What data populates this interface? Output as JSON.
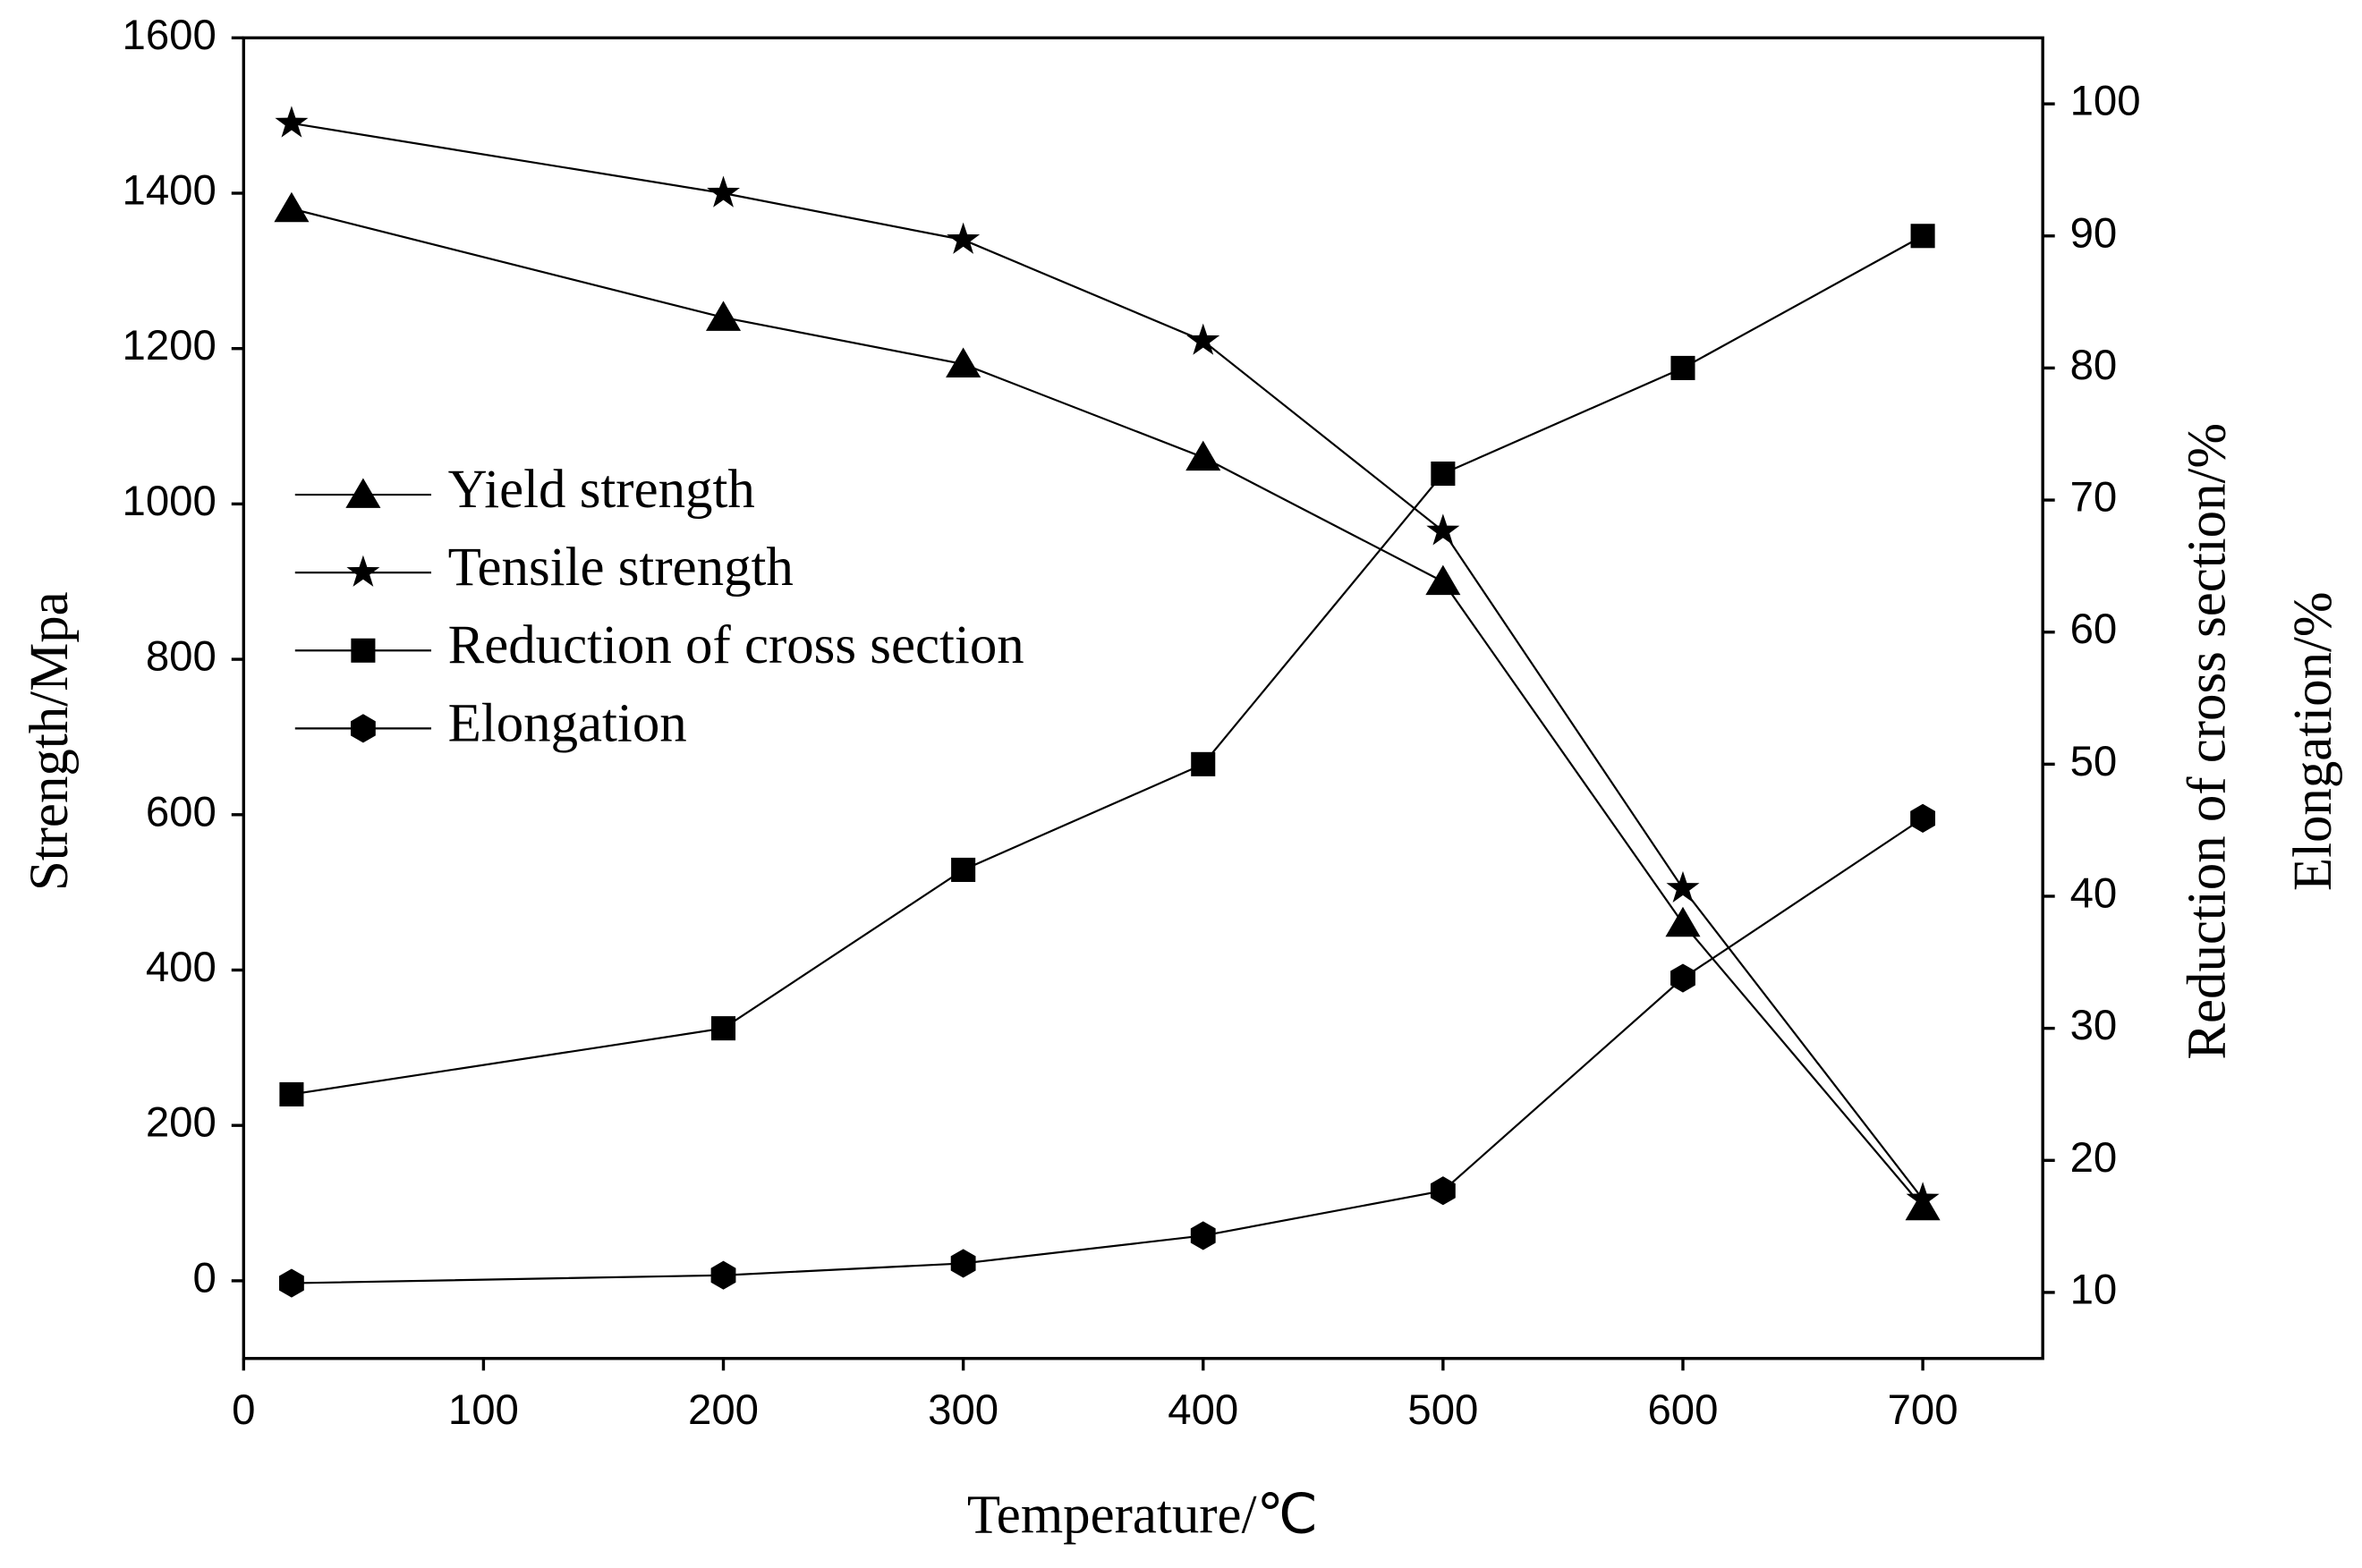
{
  "chart_data": {
    "type": "line",
    "xlabel": "Temperature/℃",
    "ylabel": "Strength/Mpa",
    "y2labels": [
      "Reduction of cross section/%",
      "Elongation/%"
    ],
    "x": [
      20,
      200,
      300,
      400,
      500,
      600,
      700
    ],
    "xlim": [
      0,
      750
    ],
    "xticks": [
      0,
      100,
      200,
      300,
      400,
      500,
      600,
      700
    ],
    "ylim": [
      -100,
      1600
    ],
    "yticks": [
      0,
      200,
      400,
      600,
      800,
      1000,
      1200,
      1400,
      1600
    ],
    "y2lim": [
      5,
      105
    ],
    "y2ticks": [
      10,
      20,
      30,
      40,
      50,
      60,
      70,
      80,
      90,
      100
    ],
    "legend": "center left",
    "series": [
      {
        "name": "Yield strength",
        "color": "#000000",
        "marker": "triangle",
        "values": [
          1380,
          1240,
          1180,
          1060,
          900,
          460,
          95
        ]
      },
      {
        "name": "Tensile strength",
        "color": "#000000",
        "marker": "star",
        "values": [
          1490,
          1400,
          1340,
          1210,
          965,
          505,
          105
        ]
      },
      {
        "name": "Reduction of cross section",
        "color": "#000000",
        "marker": "square",
        "axis": "y2",
        "values": [
          25,
          30,
          42,
          50,
          72,
          80,
          90
        ]
      },
      {
        "name": "Elongation",
        "color": "#000000",
        "marker": "hexagon",
        "axis": "y2",
        "values": [
          10.7,
          11.3,
          12.2,
          14.3,
          17.7,
          33.8,
          45.9
        ]
      }
    ]
  }
}
